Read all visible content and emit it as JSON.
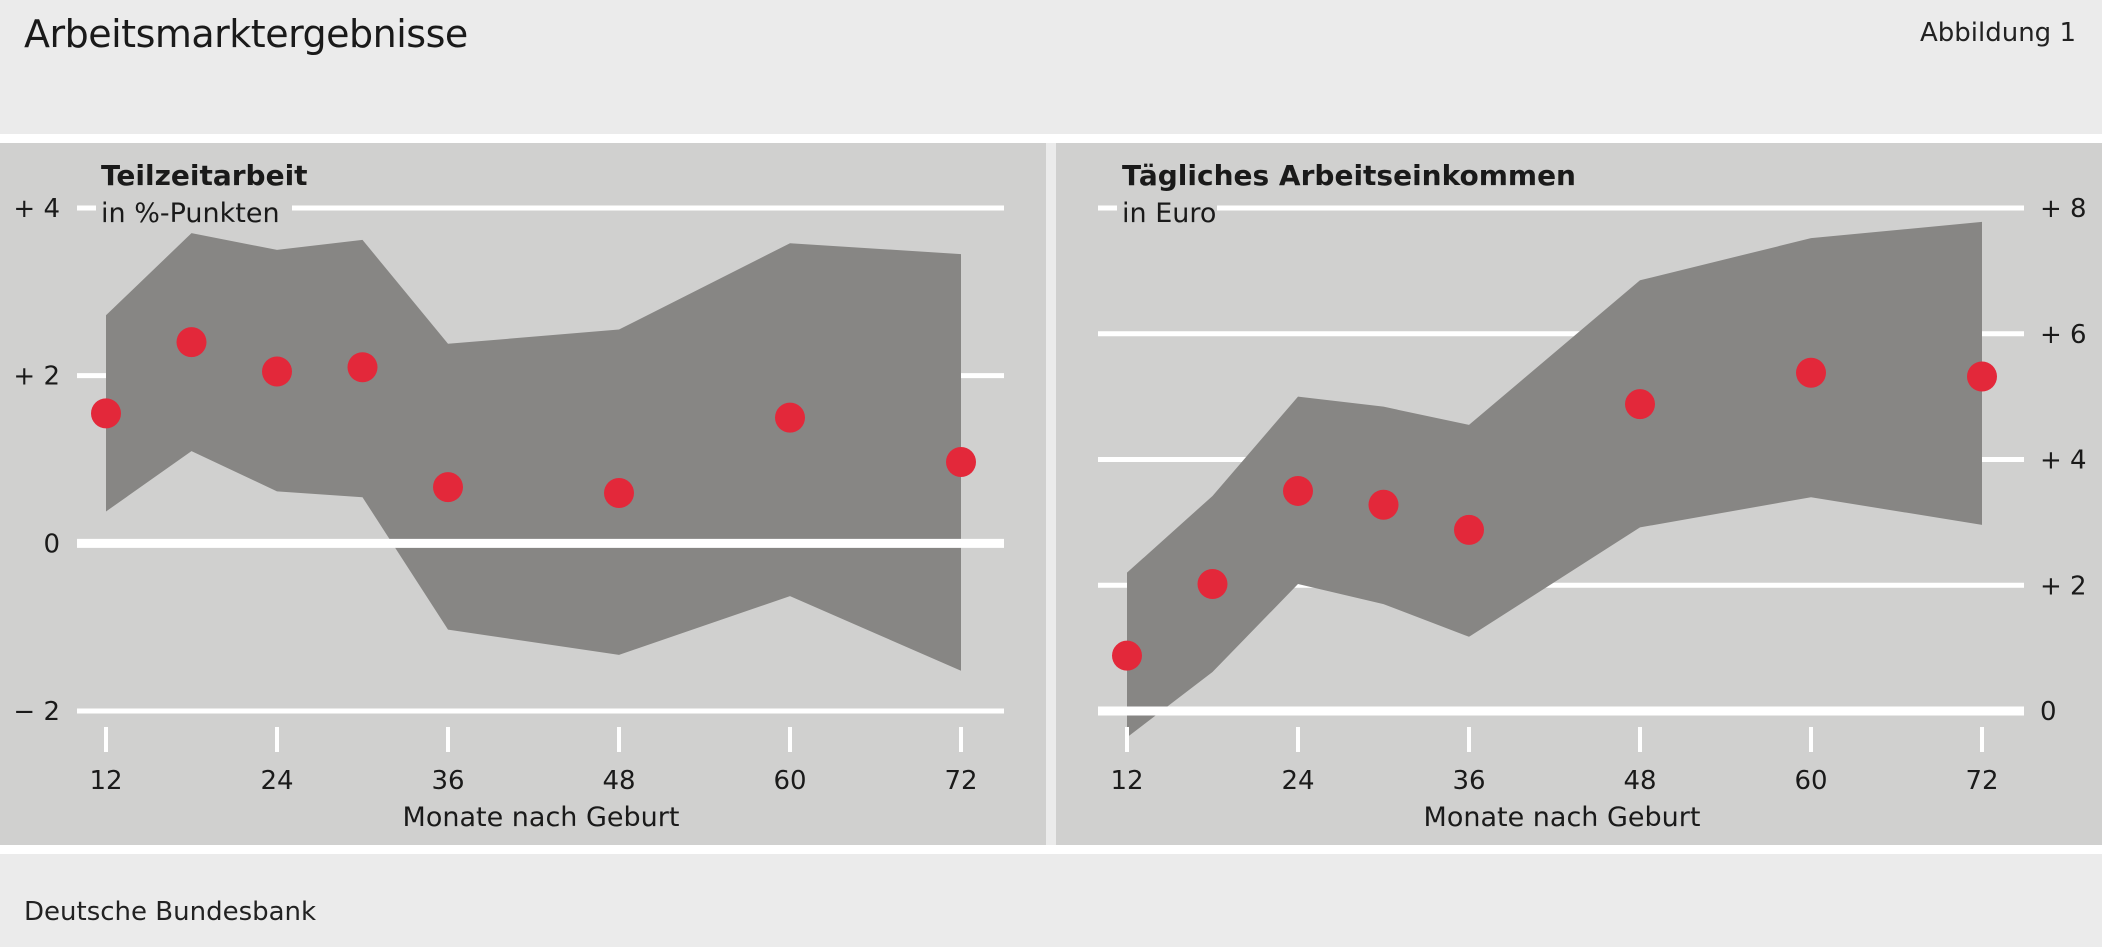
{
  "figure": {
    "title": "Arbeitsmarktergebnisse",
    "number": "Abbildung 1",
    "source": "Deutsche Bundesbank"
  },
  "colors": {
    "page_background": "#ebebeb",
    "panel_background": "#d0d0cf",
    "confidence_band": "#878684",
    "estimate_points": "#e3283a",
    "gridlines": "#ffffff"
  },
  "chart_data": [
    {
      "type": "scatter",
      "title": "Teilzeitarbeit",
      "ylabel": "in %-Punkten",
      "xlabel": "Monate nach Geburt",
      "x_ticks": [
        12,
        24,
        36,
        48,
        60,
        72
      ],
      "x_ticklabels": [
        "12",
        "24",
        "36",
        "48",
        "60",
        "72"
      ],
      "xlim": [
        12,
        72
      ],
      "ylim": [
        -2,
        4
      ],
      "y_ticks": [
        -2,
        0,
        2,
        4
      ],
      "y_ticklabels": [
        "− 2",
        "0",
        "+ 2",
        "+ 4"
      ],
      "y_axis_side": "left",
      "grid": true,
      "zero_line_emphasized": true,
      "series": [
        {
          "kind": "points",
          "x": [
            12,
            18,
            24,
            30,
            36,
            48,
            60,
            72
          ],
          "y": [
            1.55,
            2.4,
            2.05,
            2.1,
            0.67,
            0.6,
            1.5,
            0.97
          ]
        },
        {
          "kind": "band",
          "x": [
            12,
            18,
            24,
            30,
            36,
            48,
            60,
            72
          ],
          "lower": [
            0.38,
            1.1,
            0.62,
            0.55,
            -1.03,
            -1.33,
            -0.63,
            -1.52
          ],
          "upper": [
            2.72,
            3.7,
            3.5,
            3.62,
            2.38,
            2.55,
            3.58,
            3.45
          ]
        }
      ]
    },
    {
      "type": "scatter",
      "title": "Tägliches Arbeitseinkommen",
      "ylabel": "in Euro",
      "xlabel": "Monate nach Geburt",
      "x_ticks": [
        12,
        24,
        36,
        48,
        60,
        72
      ],
      "x_ticklabels": [
        "12",
        "24",
        "36",
        "48",
        "60",
        "72"
      ],
      "xlim": [
        12,
        72
      ],
      "ylim": [
        0,
        8
      ],
      "y_ticks": [
        0,
        2,
        4,
        6,
        8
      ],
      "y_ticklabels": [
        "0",
        "+ 2",
        "+ 4",
        "+ 6",
        "+ 8"
      ],
      "y_axis_side": "right",
      "grid": true,
      "zero_line_emphasized": true,
      "series": [
        {
          "kind": "points",
          "x": [
            12,
            18,
            24,
            30,
            36,
            48,
            60,
            72
          ],
          "y": [
            0.88,
            2.02,
            3.5,
            3.28,
            2.88,
            4.88,
            5.38,
            5.32
          ]
        },
        {
          "kind": "band",
          "x": [
            12,
            18,
            24,
            30,
            36,
            48,
            60,
            72
          ],
          "lower": [
            -0.42,
            0.62,
            2.02,
            1.7,
            1.18,
            2.92,
            3.4,
            2.96
          ],
          "upper": [
            2.2,
            3.42,
            5.0,
            4.84,
            4.55,
            6.85,
            7.52,
            7.78
          ]
        }
      ]
    }
  ]
}
